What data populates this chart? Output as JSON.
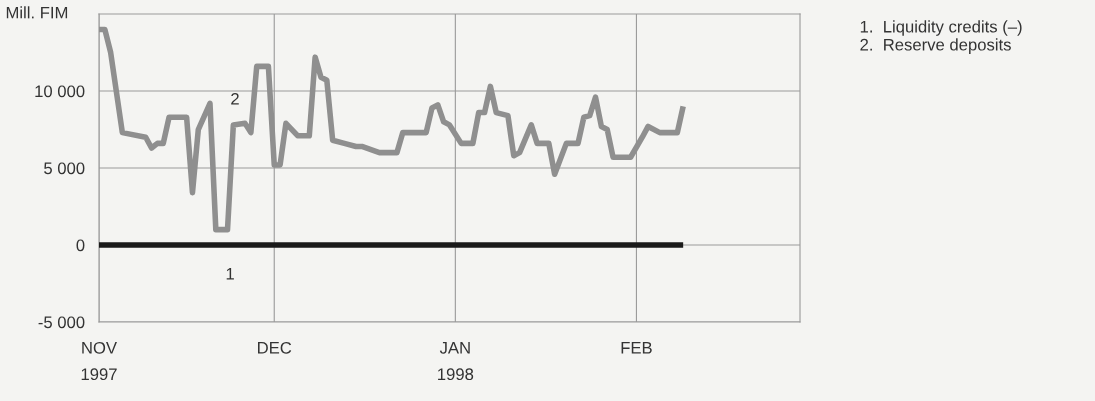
{
  "chart_data": {
    "type": "line",
    "ylabel": "Mill. FIM",
    "xlim": [
      "1997-11-01",
      "1998-03-01"
    ],
    "xticks": [
      {
        "value": "1997-11-01",
        "label": "NOV\n1997"
      },
      {
        "value": "1997-12-01",
        "label": "DEC"
      },
      {
        "value": "1998-01-01",
        "label": "JAN\n1998"
      },
      {
        "value": "1998-02-01",
        "label": "FEB"
      }
    ],
    "ylim": [
      -5000,
      15000
    ],
    "yticks": [
      {
        "value": -5000,
        "label": "-5 000"
      },
      0,
      {
        "value": 5000,
        "label": "5 000"
      },
      {
        "value": 10000,
        "label": "10 000"
      }
    ],
    "grid": true,
    "series": [
      {
        "name": "1",
        "color": "#1a1a1a",
        "x": [
          "1997-11-01",
          "1998-02-09"
        ],
        "values": [
          0,
          0
        ]
      },
      {
        "name": "2",
        "color": "#8f8f8f",
        "x": [
          "1997-11-01",
          "1997-11-02",
          "1997-11-03",
          "1997-11-05",
          "1997-11-09",
          "1997-11-10",
          "1997-11-11",
          "1997-11-12",
          "1997-11-13",
          "1997-11-16",
          "1997-11-17",
          "1997-11-18",
          "1997-11-20",
          "1997-11-21",
          "1997-11-23",
          "1997-11-24",
          "1997-11-26",
          "1997-11-27",
          "1997-11-28",
          "1997-11-30",
          "1997-12-01",
          "1997-12-02",
          "1997-12-03",
          "1997-12-05",
          "1997-12-07",
          "1997-12-08",
          "1997-12-09",
          "1997-12-10",
          "1997-12-11",
          "1997-12-13",
          "1997-12-15",
          "1997-12-16",
          "1997-12-19",
          "1997-12-22",
          "1997-12-23",
          "1997-12-27",
          "1997-12-28",
          "1997-12-29",
          "1997-12-30",
          "1997-12-31",
          "1998-01-02",
          "1998-01-04",
          "1998-01-05",
          "1998-01-06",
          "1998-01-07",
          "1998-01-08",
          "1998-01-10",
          "1998-01-11",
          "1998-01-12",
          "1998-01-14",
          "1998-01-15",
          "1998-01-17",
          "1998-01-18",
          "1998-01-20",
          "1998-01-22",
          "1998-01-23",
          "1998-01-24",
          "1998-01-25",
          "1998-01-26",
          "1998-01-27",
          "1998-01-28",
          "1998-01-31",
          "1998-02-02",
          "1998-02-03",
          "1998-02-05",
          "1998-02-08",
          "1998-02-09"
        ],
        "values": [
          14000,
          14000,
          12500,
          7300,
          7000,
          6300,
          6600,
          6600,
          8300,
          8300,
          3400,
          7500,
          9200,
          1000,
          1000,
          7800,
          7900,
          7300,
          11600,
          11600,
          5200,
          5200,
          7900,
          7100,
          7100,
          12200,
          10900,
          10700,
          6800,
          6600,
          6400,
          6400,
          6000,
          6000,
          7300,
          7300,
          8900,
          9100,
          8000,
          7800,
          6600,
          6600,
          8600,
          8600,
          10300,
          8600,
          8400,
          5800,
          6000,
          7800,
          6600,
          6600,
          4600,
          6600,
          6600,
          8300,
          8400,
          9600,
          7700,
          7500,
          5700,
          5700,
          7000,
          7700,
          7300,
          7300,
          9000
        ]
      }
    ],
    "annotations": [
      "1.  Liquidity credits (–)",
      "2.  Reserve deposits"
    ]
  }
}
